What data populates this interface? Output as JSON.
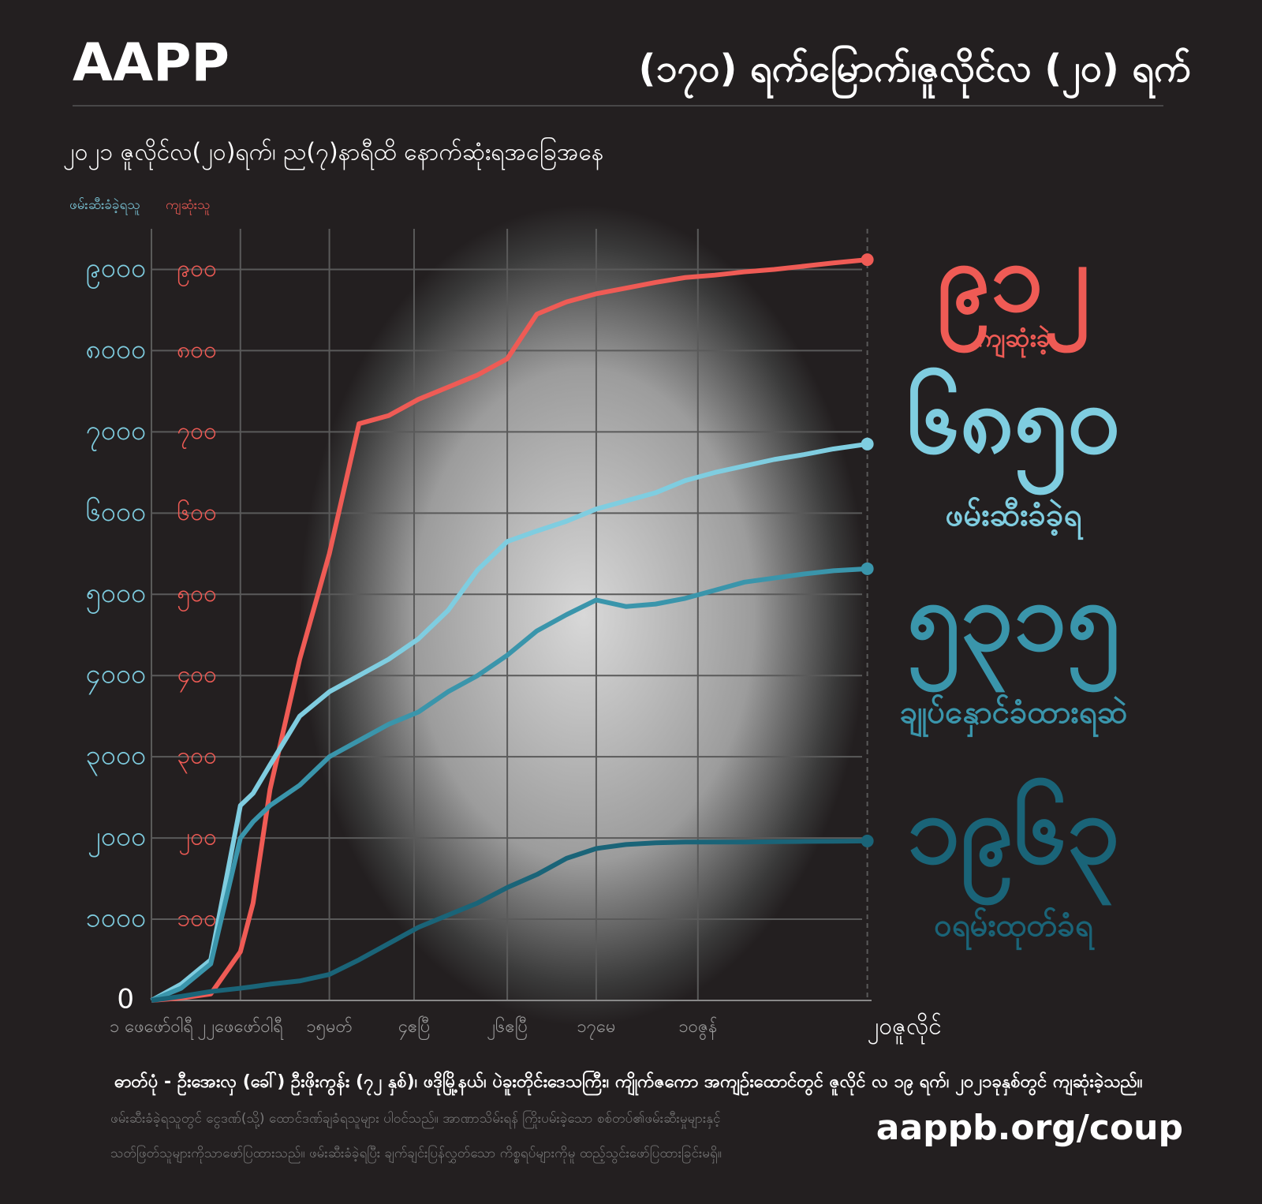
{
  "header": {
    "logo": "AAPP",
    "title": "(၁၇၀) ရက်မြောက်၊ဇူလိုင်လ (၂၀) ရက်"
  },
  "chart_data": {
    "type": "line",
    "subtitle": "၂၀၂၁ ဇူလိုင်လ(၂၀)ရက်၊ ည(၇)နာရီထိ နောက်ဆုံးရအခြေအနေ",
    "ylabel": "ဖမ်းဆီးခံခဲ့ရသူ",
    "y2label": "ကျဆုံးသူ",
    "x": [
      0,
      7,
      14,
      21,
      24,
      28,
      35,
      42,
      49,
      56,
      63,
      70,
      77,
      84,
      91,
      98,
      105,
      112,
      119,
      126,
      133,
      140,
      147,
      154,
      161,
      169
    ],
    "xlim": [
      0,
      170
    ],
    "xticks": [
      {
        "value": 0,
        "label": "၁ ဖေဖော်ဝါရီ"
      },
      {
        "value": 21,
        "label": "၂၂ဖေဖော်ဝါရီ"
      },
      {
        "value": 42,
        "label": "၁၅မတ်"
      },
      {
        "value": 62,
        "label": "၄ဧပြီ"
      },
      {
        "value": 84,
        "label": "၂၆ဧပြီ"
      },
      {
        "value": 105,
        "label": "၁၇မေ"
      },
      {
        "value": 129,
        "label": "၁၀ဇွန်"
      },
      {
        "value": 169,
        "label": "၂၀ဇူလိုင်"
      }
    ],
    "ylim": [
      0,
      9500
    ],
    "yticks": [
      0,
      {
        "value": 1000,
        "label": "၁၀၀၀"
      },
      {
        "value": 2000,
        "label": "၂၀၀၀"
      },
      {
        "value": 3000,
        "label": "၃၀၀၀"
      },
      {
        "value": 4000,
        "label": "၄၀၀၀"
      },
      {
        "value": 5000,
        "label": "၅၀၀၀"
      },
      {
        "value": 6000,
        "label": "၆၀၀၀"
      },
      {
        "value": 7000,
        "label": "၇၀၀၀"
      },
      {
        "value": 8000,
        "label": "၈၀၀၀"
      },
      {
        "value": 9000,
        "label": "၉၀၀၀"
      }
    ],
    "y2lim": [
      0,
      950
    ],
    "y2ticks": [
      {
        "value": 100,
        "label": "၁၀၀"
      },
      {
        "value": 200,
        "label": "၂၀၀"
      },
      {
        "value": 300,
        "label": "၃၀၀"
      },
      {
        "value": 400,
        "label": "၄၀၀"
      },
      {
        "value": 500,
        "label": "၅၀၀"
      },
      {
        "value": 600,
        "label": "၆၀၀"
      },
      {
        "value": 700,
        "label": "၇၀၀"
      },
      {
        "value": 800,
        "label": "၈၀၀"
      },
      {
        "value": 900,
        "label": "၉၀၀"
      }
    ],
    "grid": true,
    "series": [
      {
        "name": "ကျဆုံးခဲ့",
        "color": "#ef5b55",
        "axis": "y2",
        "values": [
          0,
          3,
          8,
          60,
          120,
          260,
          420,
          550,
          710,
          720,
          740,
          755,
          770,
          790,
          845,
          860,
          870,
          877,
          884,
          890,
          893,
          897,
          900,
          904,
          908,
          912
        ],
        "value_labels": [
          null,
          null,
          null,
          null,
          null,
          null,
          null,
          null,
          null,
          null,
          null,
          null,
          null,
          null,
          null,
          null,
          null,
          null,
          null,
          null,
          null,
          null,
          null,
          null,
          null,
          "၉၁၂"
        ]
      },
      {
        "name": "ဖမ်းဆီးခံခဲ့ရ",
        "color": "#7fcde0",
        "values": [
          0,
          200,
          500,
          2400,
          2550,
          2900,
          3500,
          3800,
          4000,
          4200,
          4450,
          4800,
          5300,
          5650,
          5780,
          5900,
          6050,
          6150,
          6250,
          6400,
          6500,
          6580,
          6660,
          6720,
          6790,
          6850
        ],
        "value_labels": [
          null,
          null,
          null,
          null,
          null,
          null,
          null,
          null,
          null,
          null,
          null,
          null,
          null,
          null,
          null,
          null,
          null,
          null,
          null,
          null,
          null,
          null,
          null,
          null,
          null,
          "၆၈၅၀"
        ]
      },
      {
        "name": "ချုပ်နှောင်ခံထားရဆဲ",
        "color": "#3a95ab",
        "values": [
          0,
          150,
          450,
          2000,
          2200,
          2400,
          2650,
          3000,
          3200,
          3400,
          3550,
          3800,
          4000,
          4250,
          4550,
          4750,
          4930,
          4850,
          4880,
          4950,
          5050,
          5150,
          5200,
          5250,
          5290,
          5315
        ],
        "value_labels": [
          null,
          null,
          null,
          null,
          null,
          null,
          null,
          null,
          null,
          null,
          null,
          null,
          null,
          null,
          null,
          null,
          null,
          null,
          null,
          null,
          null,
          null,
          null,
          null,
          null,
          "၅၃၁၅"
        ]
      },
      {
        "name": "ဝရမ်းထုတ်ခံရ",
        "color": "#1a6478",
        "values": [
          0,
          50,
          110,
          150,
          170,
          200,
          240,
          320,
          500,
          700,
          900,
          1050,
          1200,
          1390,
          1550,
          1750,
          1870,
          1920,
          1940,
          1950,
          1950,
          1950,
          1955,
          1958,
          1960,
          1963
        ],
        "value_labels": [
          null,
          null,
          null,
          null,
          null,
          null,
          null,
          null,
          null,
          null,
          null,
          null,
          null,
          null,
          null,
          null,
          null,
          null,
          null,
          null,
          null,
          null,
          null,
          null,
          null,
          "၁၉၆၃"
        ]
      }
    ]
  },
  "footer": {
    "caption": "ဓာတ်ပုံ - ဦးအေးလှ (ခေါ်) ဦးဖိုးကွန်း (၇၂ နှစ်)၊ ဖဒိုမြို့နယ်၊ ပဲခူးတိုင်းဒေသကြီး၊ ကျိုက်ဇကော အကျဉ်းထောင်တွင် ဇူလိုင် လ ၁၉ ရက်၊ ၂၀၂၁ခုနှစ်တွင် ကျဆုံးခဲ့သည်။",
    "notes": [
      "ဖမ်းဆီးခံခဲ့ရသူတွင် ငွေဒဏ်(သို့) ထောင်ဒဏ်ချခံရသူများ ပါဝင်သည်။ အာဏာသိမ်းရန် ကြိုးပမ်းခဲ့သော စစ်တပ်၏ဖမ်းဆီးမှုများနှင့်",
      "သတ်ဖြတ်သူများကိုသာဖော်ပြထားသည်။ ဖမ်းဆီးခံခဲ့ရပြီး ချက်ချင်းပြန်လွှတ်သော ကိစ္စရပ်များကိုမူ ထည့်သွင်းဖော်ပြထားခြင်းမရှိ။"
    ],
    "url": "aappb.org/coup"
  }
}
